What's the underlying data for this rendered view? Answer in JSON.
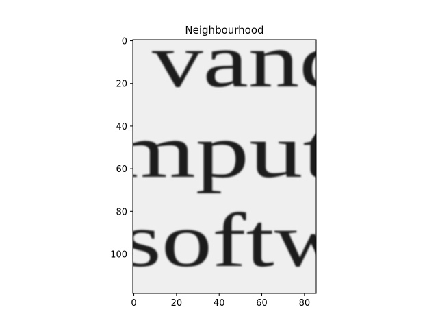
{
  "chart_data": {
    "type": "image",
    "title": "Neighbourhood",
    "xlim": [
      -0.5,
      85.5
    ],
    "ylim": [
      118.5,
      -0.5
    ],
    "x_ticks": [
      0,
      20,
      40,
      60,
      80
    ],
    "y_ticks": [
      0,
      20,
      40,
      60,
      80,
      100
    ],
    "image_text_lines": [
      "vand",
      "mput",
      "softw"
    ],
    "colormap": "gray"
  },
  "colors": {
    "image_background": "#efefef",
    "ink": "#1c1c1c",
    "axis": "#000000"
  }
}
